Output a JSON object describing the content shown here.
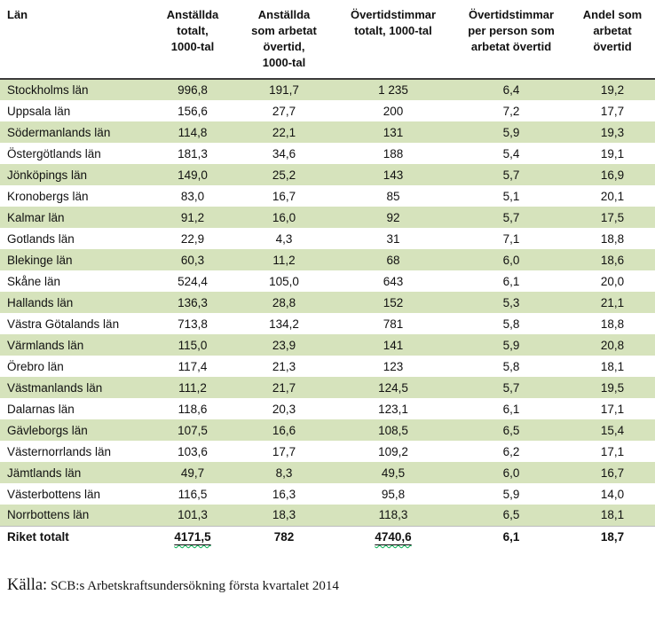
{
  "table": {
    "header": [
      "Län",
      "Anställda\ntotalt,\n1000-tal",
      "Anställda\nsom arbetat\növertid,\n1000-tal",
      "Övertidstimmar\ntotalt, 1000-tal",
      "Övertidstimmar\nper person som\narbetat övertid",
      "Andel som\narbetat\növertid"
    ],
    "rows": [
      [
        "Stockholms län",
        "996,8",
        "191,7",
        "1 235",
        "6,4",
        "19,2"
      ],
      [
        "Uppsala län",
        "156,6",
        "27,7",
        "200",
        "7,2",
        "17,7"
      ],
      [
        "Södermanlands län",
        "114,8",
        "22,1",
        "131",
        "5,9",
        "19,3"
      ],
      [
        "Östergötlands län",
        "181,3",
        "34,6",
        "188",
        "5,4",
        "19,1"
      ],
      [
        "Jönköpings län",
        "149,0",
        "25,2",
        "143",
        "5,7",
        "16,9"
      ],
      [
        "Kronobergs län",
        "83,0",
        "16,7",
        "85",
        "5,1",
        "20,1"
      ],
      [
        "Kalmar län",
        "91,2",
        "16,0",
        "92",
        "5,7",
        "17,5"
      ],
      [
        "Gotlands län",
        "22,9",
        "4,3",
        "31",
        "7,1",
        "18,8"
      ],
      [
        "Blekinge län",
        "60,3",
        "11,2",
        "68",
        "6,0",
        "18,6"
      ],
      [
        "Skåne län",
        "524,4",
        "105,0",
        "643",
        "6,1",
        "20,0"
      ],
      [
        "Hallands län",
        "136,3",
        "28,8",
        "152",
        "5,3",
        "21,1"
      ],
      [
        "Västra Götalands län",
        "713,8",
        "134,2",
        "781",
        "5,8",
        "18,8"
      ],
      [
        "Värmlands län",
        "115,0",
        "23,9",
        "141",
        "5,9",
        "20,8"
      ],
      [
        "Örebro län",
        "117,4",
        "21,3",
        "123",
        "5,8",
        "18,1"
      ],
      [
        "Västmanlands län",
        "111,2",
        "21,7",
        "124,5",
        "5,7",
        "19,5"
      ],
      [
        "Dalarnas län",
        "118,6",
        "20,3",
        "123,1",
        "6,1",
        "17,1"
      ],
      [
        "Gävleborgs län",
        "107,5",
        "16,6",
        "108,5",
        "6,5",
        "15,4"
      ],
      [
        "Västernorrlands län",
        "103,6",
        "17,7",
        "109,2",
        "6,2",
        "17,1"
      ],
      [
        "Jämtlands län",
        "49,7",
        "8,3",
        "49,5",
        "6,0",
        "16,7"
      ],
      [
        "Västerbottens län",
        "116,5",
        "16,3",
        "95,8",
        "5,9",
        "14,0"
      ],
      [
        "Norrbottens län",
        "101,3",
        "18,3",
        "118,3",
        "6,5",
        "18,1"
      ]
    ],
    "total": {
      "cells": [
        "Riket totalt",
        "4171,5",
        "782",
        "4740,6",
        "6,1",
        "18,7"
      ],
      "squiggle_columns": [
        1,
        3
      ]
    }
  },
  "source": {
    "label": "Källa:",
    "text": " SCB:s Arbetskraftsundersökning första kvartalet 2014"
  },
  "colors": {
    "stripe_green": "#d6e3bc",
    "header_rule": "#3b3b3b",
    "total_rule": "#bdbdbd",
    "squiggle_green": "#00b050"
  }
}
